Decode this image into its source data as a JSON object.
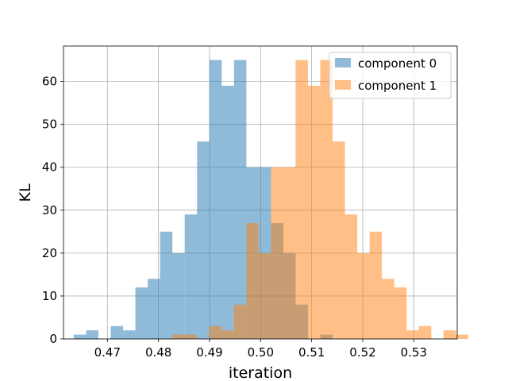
{
  "chart_data": {
    "type": "bar",
    "subtype": "histogram",
    "xlabel": "iteration",
    "ylabel": "KL",
    "xlim": [
      0.4614,
      0.5385
    ],
    "ylim": [
      0,
      68.25
    ],
    "xticks": [
      0.47,
      0.48,
      0.49,
      0.5,
      0.51,
      0.52,
      0.53
    ],
    "xtick_labels": [
      "0.47",
      "0.48",
      "0.49",
      "0.50",
      "0.51",
      "0.52",
      "0.53"
    ],
    "yticks": [
      0,
      10,
      20,
      30,
      40,
      50,
      60
    ],
    "ytick_labels": [
      "0",
      "10",
      "20",
      "30",
      "40",
      "50",
      "60"
    ],
    "grid": true,
    "legend_position": "top-right",
    "series": [
      {
        "name": "component 0",
        "color": "#1f77b4",
        "alpha": 0.5,
        "bin_start": 0.4634,
        "bin_width": 0.002415,
        "counts": [
          1,
          2,
          0,
          3,
          2,
          12,
          14,
          25,
          20,
          29,
          46,
          65,
          59,
          65,
          40,
          40,
          27,
          20,
          8,
          0,
          1,
          0,
          0,
          0,
          0,
          0,
          0,
          0,
          0,
          0
        ]
      },
      {
        "name": "component 1",
        "color": "#ff7f0e",
        "alpha": 0.5,
        "bin_start": 0.4827,
        "bin_width": 0.002415,
        "counts": [
          1,
          1,
          0,
          3,
          2,
          8,
          27,
          20,
          40,
          40,
          65,
          59,
          65,
          46,
          29,
          20,
          25,
          14,
          12,
          2,
          3,
          0,
          2,
          1
        ]
      }
    ]
  }
}
